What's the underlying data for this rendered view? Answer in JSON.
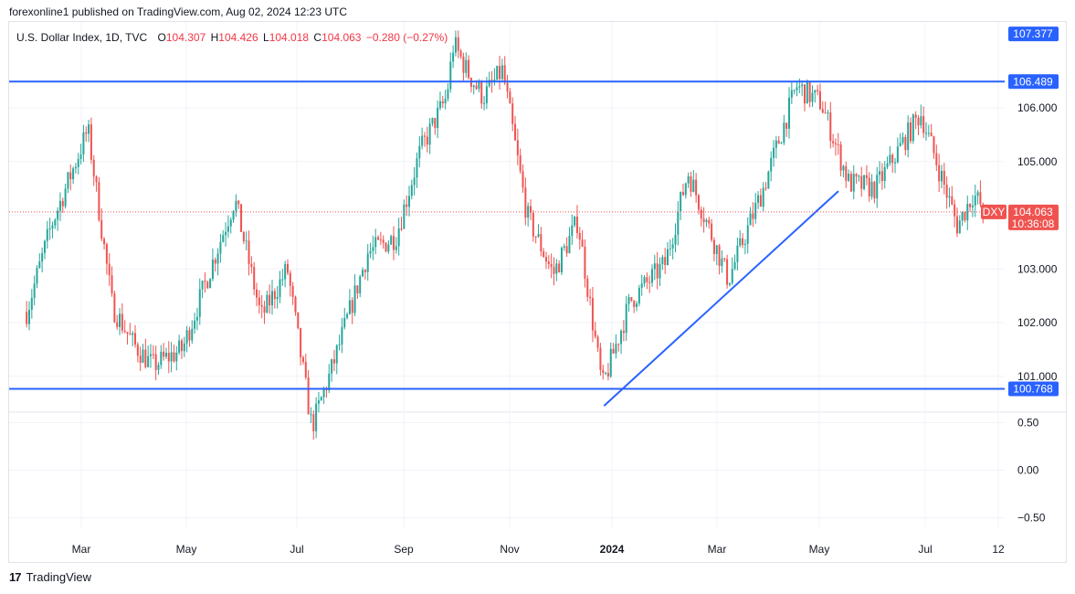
{
  "header": {
    "publisher": "forexonline1 published on TradingView.com, Aug 02, 2024 12:23 UTC"
  },
  "legend": {
    "symbol": "U.S. Dollar Index, 1D, TVC",
    "o_label": "O",
    "o": "104.307",
    "h_label": "H",
    "h": "104.426",
    "l_label": "L",
    "l": "104.018",
    "c_label": "C",
    "c": "104.063",
    "change": "−0.280 (−0.27%)"
  },
  "footer": {
    "brand": "TradingView",
    "logo_text": "17"
  },
  "colors": {
    "up": "#26a69a",
    "down": "#ef5350",
    "line": "#2962ff",
    "accent": "#2962ff",
    "label_red": "#f23645"
  },
  "chart_data": {
    "type": "candlestick",
    "symbol": "DXY",
    "x_labels": [
      "Mar",
      "May",
      "Jul",
      "Sep",
      "Nov",
      "2024",
      "Mar",
      "May",
      "Jul",
      "12"
    ],
    "y_ticks": [
      "101.000",
      "102.000",
      "103.000",
      "104.000",
      "105.000",
      "106.000"
    ],
    "ylim": [
      100.35,
      107.6
    ],
    "price_tags": [
      {
        "value": 107.377,
        "label": "107.377",
        "kind": "blue"
      },
      {
        "value": 106.489,
        "label": "106.489",
        "kind": "blue"
      },
      {
        "value": 100.768,
        "label": "100.768",
        "kind": "blue"
      }
    ],
    "current": {
      "symbol": "DXY",
      "price": "104.063",
      "value": 104.063,
      "countdown": "10:36:08"
    },
    "horizontal_lines": [
      106.489,
      100.768
    ],
    "trendline": {
      "from": [
        "2023-12-28",
        100.45
      ],
      "to": [
        "2024-05-10",
        104.45
      ]
    },
    "indicator_pane": {
      "y_ticks": [
        "0.50",
        "0.00",
        "−0.50"
      ],
      "ylim": [
        -0.6,
        0.6
      ]
    },
    "series_path": [
      [
        "2023-02-01",
        102.2
      ],
      [
        "2023-02-15",
        103.8
      ],
      [
        "2023-02-28",
        104.9
      ],
      [
        "2023-03-08",
        105.6
      ],
      [
        "2023-03-22",
        102.3
      ],
      [
        "2023-04-03",
        101.6
      ],
      [
        "2023-04-14",
        101.2
      ],
      [
        "2023-05-01",
        101.5
      ],
      [
        "2023-05-17",
        103.0
      ],
      [
        "2023-05-31",
        104.3
      ],
      [
        "2023-06-15",
        102.1
      ],
      [
        "2023-06-30",
        103.0
      ],
      [
        "2023-07-14",
        100.05
      ],
      [
        "2023-07-26",
        101.2
      ],
      [
        "2023-08-15",
        103.3
      ],
      [
        "2023-08-31",
        103.6
      ],
      [
        "2023-09-14",
        105.2
      ],
      [
        "2023-09-29",
        106.2
      ],
      [
        "2023-10-03",
        107.2
      ],
      [
        "2023-10-12",
        106.6
      ],
      [
        "2023-10-20",
        106.2
      ],
      [
        "2023-10-31",
        106.7
      ],
      [
        "2023-11-14",
        104.0
      ],
      [
        "2023-11-29",
        102.9
      ],
      [
        "2023-12-13",
        103.9
      ],
      [
        "2023-12-27",
        100.8
      ],
      [
        "2024-01-12",
        102.4
      ],
      [
        "2024-02-01",
        103.1
      ],
      [
        "2024-02-14",
        104.8
      ],
      [
        "2024-03-08",
        102.8
      ],
      [
        "2024-03-28",
        104.5
      ],
      [
        "2024-04-16",
        106.4
      ],
      [
        "2024-04-30",
        106.1
      ],
      [
        "2024-05-16",
        104.6
      ],
      [
        "2024-05-31",
        104.5
      ],
      [
        "2024-06-26",
        105.9
      ],
      [
        "2024-07-17",
        103.8
      ],
      [
        "2024-07-26",
        104.4
      ],
      [
        "2024-08-02",
        104.06
      ]
    ]
  }
}
